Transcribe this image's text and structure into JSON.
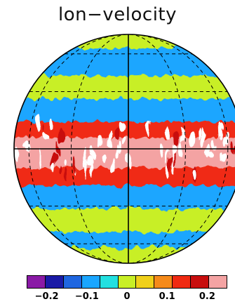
{
  "title": "lon−velocity",
  "colorbar": {
    "colors": [
      "#8a1aa6",
      "#1a1aa6",
      "#1f66e0",
      "#1aa6ff",
      "#22e0e0",
      "#c8ef26",
      "#f0d01a",
      "#f58a1a",
      "#f02a12",
      "#c80e0e",
      "#f4a3a3"
    ],
    "tick_labels": [
      "−0.2",
      "−0.1",
      "0",
      "0.1",
      "0.2"
    ]
  },
  "chart_data": {
    "type": "heatmap",
    "title": "lon−velocity",
    "projection": "orthographic",
    "grid": true,
    "colorbar_range": [
      -0.25,
      0.25
    ],
    "colorbar_ticks": [
      -0.2,
      -0.1,
      0,
      0.1,
      0.2
    ],
    "zonal_bands": [
      {
        "region": "north-polar",
        "level": 0.0
      },
      {
        "region": "north-high-latitude",
        "level": -0.1
      },
      {
        "region": "north-mid-latitude",
        "level": 0.0
      },
      {
        "region": "north-subtropics",
        "level": -0.1
      },
      {
        "region": "north-low-latitude",
        "level": 0.15
      },
      {
        "region": "equatorial",
        "level": 0.25
      },
      {
        "region": "south-low-latitude",
        "level": 0.15
      },
      {
        "region": "south-subtropics",
        "level": -0.1
      },
      {
        "region": "south-mid-latitude",
        "level": 0.0
      },
      {
        "region": "south-high-latitude",
        "level": -0.1
      },
      {
        "region": "south-polar",
        "level": 0.0
      }
    ]
  }
}
